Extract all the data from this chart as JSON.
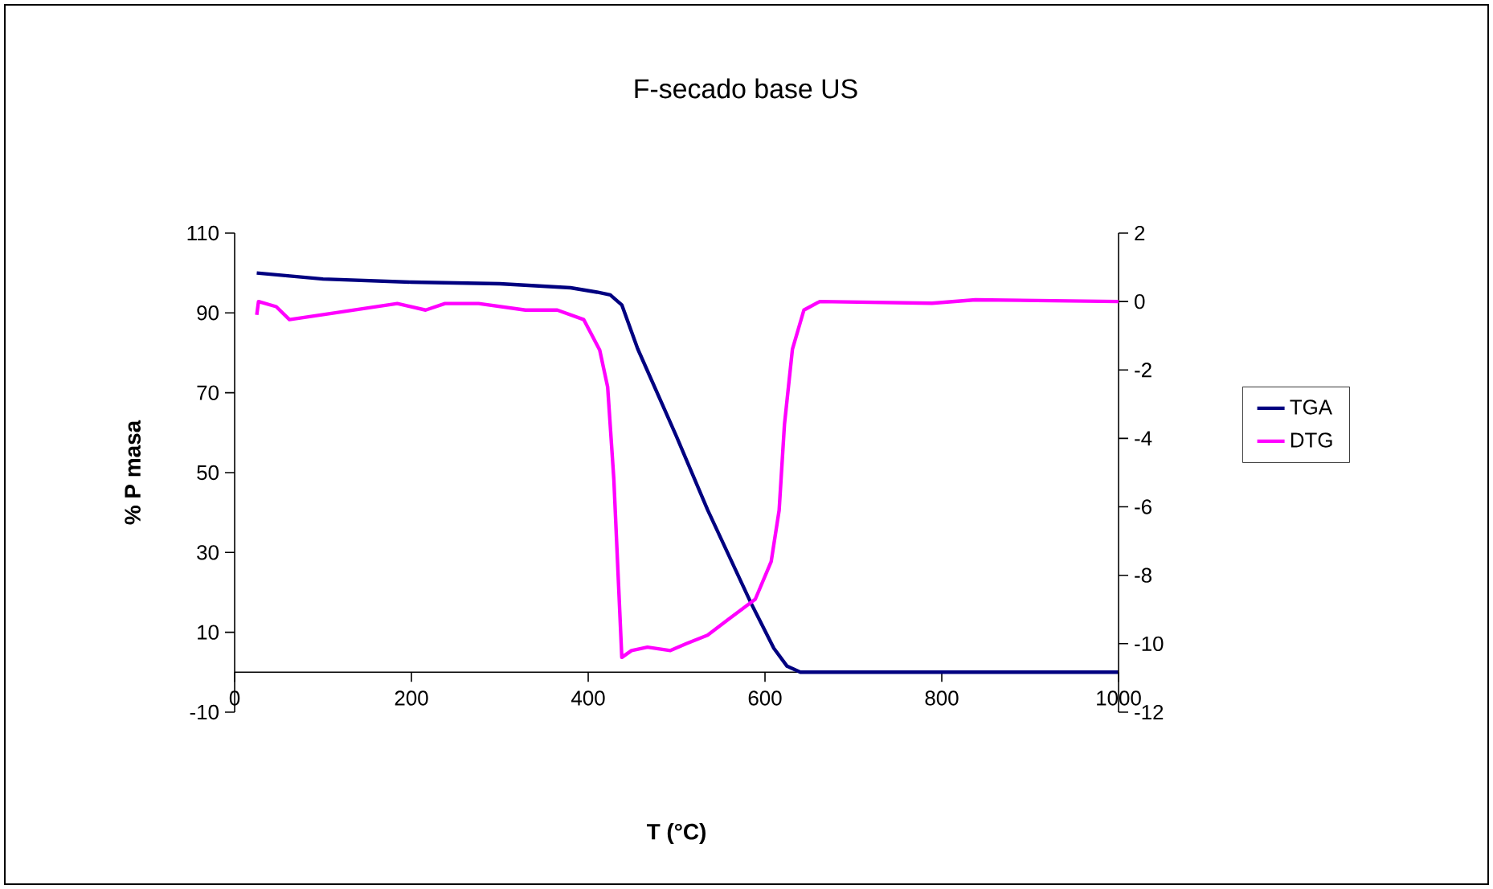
{
  "chart_data": {
    "type": "line",
    "title": "F-secado base US",
    "xlabel": "T (°C)",
    "ylabel": "% P masa",
    "xlim": [
      0,
      1000
    ],
    "xticks": [
      0,
      200,
      400,
      600,
      800,
      1000
    ],
    "ylim": [
      -10,
      110
    ],
    "yticks": [
      -10,
      10,
      30,
      50,
      70,
      90,
      110
    ],
    "y2lim": [
      -12,
      2
    ],
    "y2ticks": [
      -12,
      -10,
      -8,
      -6,
      -4,
      -2,
      0,
      2
    ],
    "legend": "right",
    "grid": false,
    "marker": "none",
    "line_style": "solid",
    "series": [
      {
        "name": "TGA",
        "color": "#000080",
        "x": [
          25,
          100,
          200,
          300,
          380,
          410,
          425,
          438,
          456,
          500,
          535,
          584,
          610,
          625,
          640,
          700,
          1000
        ],
        "values": [
          100,
          98.5,
          97.7,
          97.3,
          96.3,
          95.2,
          94.5,
          92,
          81,
          59,
          40.7,
          17.4,
          6,
          1.5,
          0,
          0,
          0
        ]
      },
      {
        "name": "DTG",
        "color": "#ff00ff",
        "axis": "y2",
        "x": [
          25,
          27,
          47,
          62,
          111,
          184,
          216,
          238,
          276,
          329,
          365,
          395,
          413,
          422,
          429,
          438,
          449,
          467,
          493,
          511,
          535,
          558,
          589,
          607,
          616,
          622,
          631,
          644,
          662,
          789,
          838,
          1000
        ],
        "values": [
          -0.39,
          0,
          -0.15,
          -0.53,
          -0.34,
          -0.06,
          -0.25,
          -0.06,
          -0.06,
          -0.25,
          -0.25,
          -0.53,
          -1.42,
          -2.5,
          -5.2,
          -10.4,
          -10.2,
          -10.1,
          -10.2,
          -10.0,
          -9.75,
          -9.3,
          -8.7,
          -7.6,
          -6.1,
          -3.6,
          -1.4,
          -0.25,
          0,
          -0.05,
          0.05,
          0
        ]
      }
    ]
  }
}
